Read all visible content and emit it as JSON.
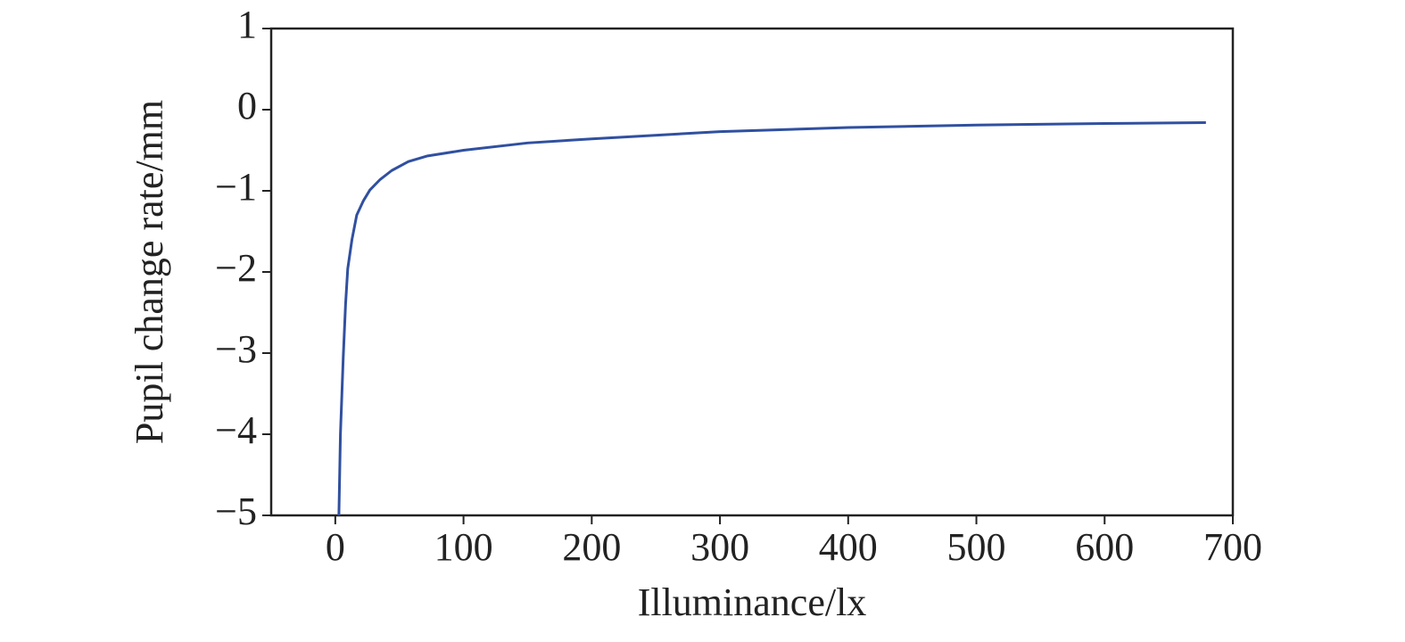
{
  "chart_data": {
    "type": "line",
    "xlabel": "Illuminance/lx",
    "ylabel": "Pupil change rate/mm",
    "x": [
      2.8,
      4,
      6.2,
      8,
      9.7,
      13,
      16.7,
      22,
      27,
      35,
      44,
      57,
      72,
      100,
      150,
      200,
      300,
      400,
      500,
      600,
      679
    ],
    "series": [
      {
        "name": "Pupil change rate",
        "color": "#3050a0",
        "values": [
          -5,
          -4,
          -3.05,
          -2.4,
          -1.96,
          -1.6,
          -1.3,
          -1.12,
          -0.99,
          -0.86,
          -0.75,
          -0.64,
          -0.57,
          -0.5,
          -0.41,
          -0.36,
          -0.27,
          -0.22,
          -0.19,
          -0.17,
          -0.16
        ]
      }
    ],
    "xlim": [
      -50,
      700
    ],
    "ylim": [
      -5,
      1
    ],
    "xticks": [
      0,
      100,
      200,
      300,
      400,
      500,
      600,
      700
    ],
    "yticks": [
      {
        "value": -5,
        "label": "−5"
      },
      {
        "value": -4,
        "label": "−4"
      },
      {
        "value": -3,
        "label": "−3"
      },
      {
        "value": -2,
        "label": "−2"
      },
      {
        "value": -1,
        "label": "−1"
      },
      0,
      1
    ],
    "grid": false
  }
}
